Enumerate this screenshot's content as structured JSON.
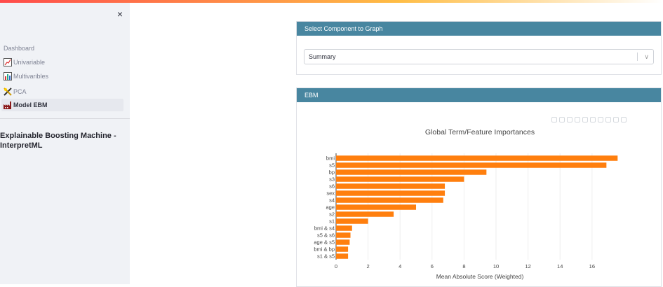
{
  "sidebar": {
    "close_label": "×",
    "nav_title": "Dashboard",
    "items": [
      {
        "label": "Univariable",
        "icon": "line-chart-icon"
      },
      {
        "label": "Multivaribles",
        "icon": "bar-chart-icon"
      },
      {
        "label": "PCA",
        "icon": "tools-icon"
      },
      {
        "label": "Model EBM",
        "icon": "factory-icon"
      }
    ],
    "heading": "Explainable Boosting Machine - InterpretML"
  },
  "select_panel": {
    "header": "Select Component to Graph",
    "selected_value": "Summary"
  },
  "ebm_panel": {
    "header": "EBM"
  },
  "colors": {
    "panel_header": "#4886a0",
    "bar": "#ff7f0e",
    "accent_gradient_start": "#ff4b4b"
  },
  "chart_data": {
    "type": "bar",
    "orientation": "horizontal",
    "title": "Global Term/Feature Importances",
    "xlabel": "Mean Absolute Score (Weighted)",
    "ylabel": "",
    "categories": [
      "bmi",
      "s5",
      "bp",
      "s3",
      "s6",
      "sex",
      "s4",
      "age",
      "s2",
      "s1",
      "bmi & s4",
      "s5 & s6",
      "age & s5",
      "bmi & bp",
      "s1 & s5"
    ],
    "values": [
      17.6,
      16.9,
      9.4,
      8.0,
      6.8,
      6.8,
      6.7,
      5.0,
      3.6,
      2.0,
      1.0,
      0.9,
      0.85,
      0.75,
      0.75
    ],
    "xlim": [
      0,
      18.2
    ],
    "xticks": [
      0,
      2,
      4,
      6,
      8,
      10,
      12,
      14,
      16
    ],
    "grid": true,
    "legend": "none"
  }
}
